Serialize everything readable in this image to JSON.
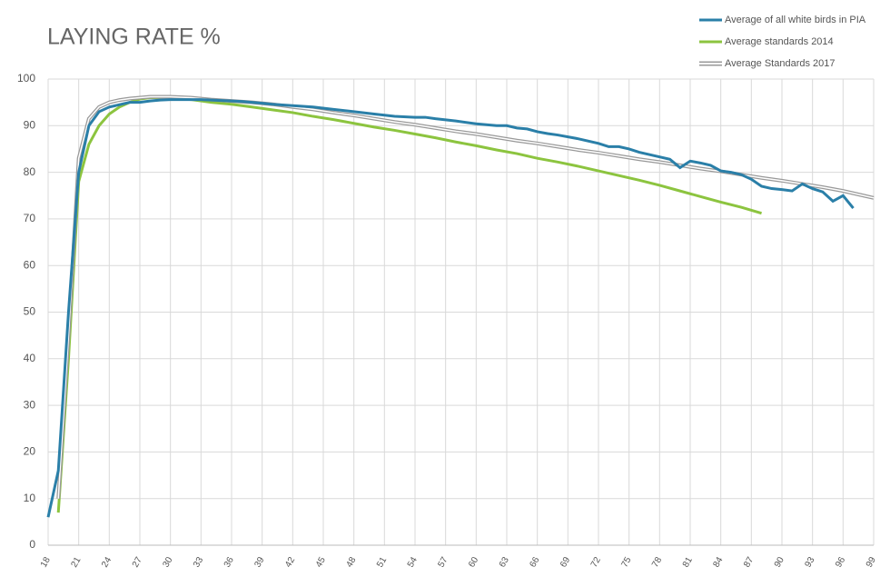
{
  "chart_data": {
    "type": "line",
    "title": "LAYING RATE %",
    "xlim": [
      18,
      99
    ],
    "xticks": [
      18,
      21,
      24,
      27,
      30,
      33,
      36,
      39,
      42,
      45,
      48,
      51,
      54,
      57,
      60,
      63,
      66,
      69,
      72,
      75,
      78,
      81,
      84,
      87,
      90,
      93,
      96,
      99
    ],
    "ylim": [
      0,
      100
    ],
    "yticks": [
      0,
      10,
      20,
      30,
      40,
      50,
      60,
      70,
      80,
      90,
      100
    ],
    "grid": true,
    "series": [
      {
        "name": "Average of all white birds in PIA",
        "color": "#2a7fa8",
        "x": [
          18,
          19,
          20,
          21,
          22,
          23,
          24,
          25,
          26,
          27,
          28,
          29,
          30,
          31,
          32,
          33,
          34,
          35,
          36,
          37,
          38,
          39,
          40,
          42,
          44,
          46,
          48,
          50,
          52,
          54,
          55,
          56,
          58,
          60,
          62,
          63,
          64,
          65,
          66,
          67,
          68,
          70,
          72,
          73,
          74,
          75,
          76,
          78,
          79,
          80,
          81,
          82,
          83,
          84,
          85,
          86,
          87,
          88,
          89,
          90,
          91,
          92,
          93,
          94,
          95,
          96,
          97
        ],
        "values": [
          6,
          16,
          50,
          80,
          90,
          93,
          94,
          94.5,
          95,
          95,
          95.3,
          95.5,
          95.6,
          95.6,
          95.6,
          95.6,
          95.5,
          95.4,
          95.3,
          95.2,
          95,
          94.8,
          94.6,
          94.3,
          94,
          93.5,
          93,
          92.5,
          92,
          91.8,
          91.8,
          91.5,
          91,
          90.4,
          90,
          90,
          89.5,
          89.3,
          88.7,
          88.3,
          88,
          87.2,
          86.2,
          85.5,
          85.5,
          85,
          84.3,
          83.3,
          82.8,
          81,
          82.4,
          82,
          81.5,
          80.3,
          80,
          79.5,
          78.5,
          77,
          76.5,
          76.3,
          76,
          77.5,
          76.5,
          75.8,
          73.8,
          75,
          72.3
        ]
      },
      {
        "name": "Average standards 2014",
        "color": "#8cc43f",
        "x": [
          19,
          20,
          21,
          22,
          23,
          24,
          25,
          26,
          27,
          28,
          30,
          32,
          34,
          36,
          38,
          40,
          42,
          44,
          46,
          48,
          50,
          52,
          54,
          56,
          58,
          60,
          62,
          64,
          66,
          68,
          70,
          72,
          74,
          76,
          78,
          80,
          82,
          84,
          86,
          88
        ],
        "values": [
          7,
          40,
          78,
          86,
          90,
          92.5,
          94,
          95,
          95.7,
          96,
          96,
          95.6,
          95,
          94.6,
          94,
          93.4,
          92.8,
          92,
          91.3,
          90.5,
          89.7,
          89,
          88.2,
          87.4,
          86.5,
          85.7,
          84.8,
          84,
          83,
          82.2,
          81.3,
          80.3,
          79.3,
          78.3,
          77.2,
          76,
          74.8,
          73.6,
          72.5,
          71.2
        ]
      },
      {
        "name": "Average Standards 2017",
        "color": "#999999",
        "x": [
          19,
          20,
          21,
          22,
          23,
          24,
          25,
          26,
          27,
          28,
          30,
          32,
          34,
          36,
          38,
          40,
          42,
          44,
          46,
          48,
          50,
          52,
          54,
          56,
          58,
          60,
          62,
          64,
          66,
          68,
          70,
          72,
          74,
          76,
          78,
          80,
          82,
          84,
          86,
          88,
          90,
          92,
          94,
          96,
          98,
          99
        ],
        "values": [
          10,
          45,
          83,
          91.5,
          94,
          95,
          95.5,
          95.8,
          96,
          96.2,
          96.2,
          96,
          95.6,
          95.3,
          95,
          94.6,
          94,
          93.5,
          92.8,
          92.2,
          91.5,
          90.8,
          90.2,
          89.5,
          88.8,
          88.2,
          87.5,
          86.8,
          86.2,
          85.5,
          84.8,
          84.2,
          83.5,
          82.8,
          82.2,
          81.5,
          80.8,
          80.2,
          79.5,
          78.8,
          78.2,
          77.5,
          76.8,
          76,
          75,
          74.5
        ]
      }
    ]
  }
}
